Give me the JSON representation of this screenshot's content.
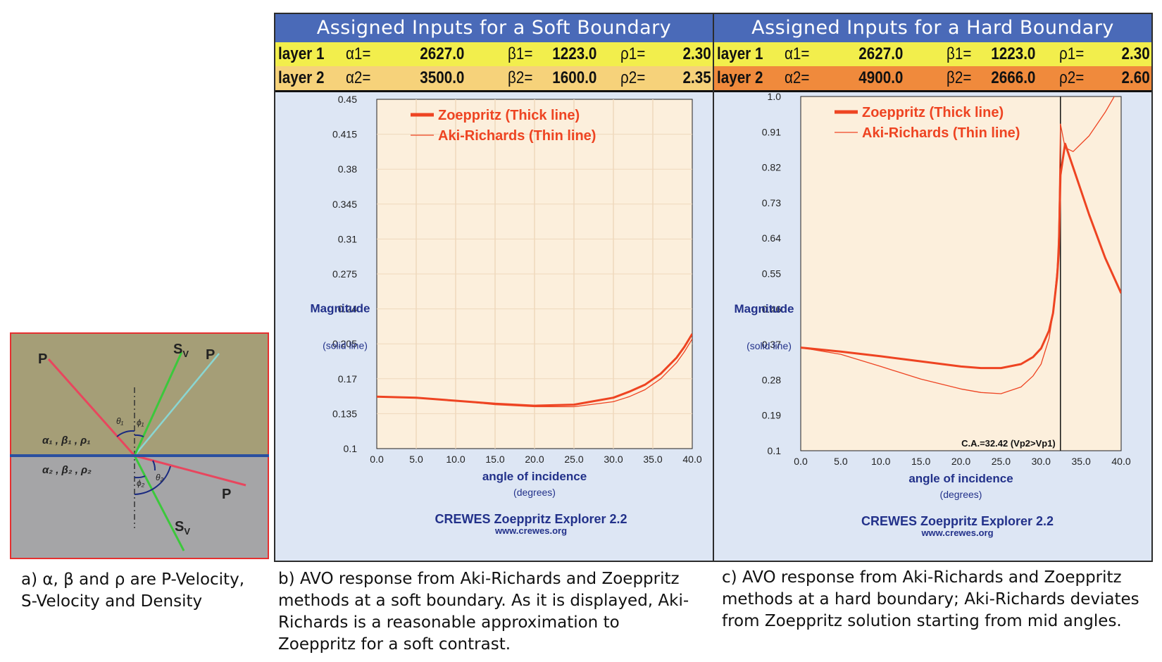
{
  "diagram": {
    "labels": {
      "p_incident": "P",
      "sv_reflected": "S",
      "sv_reflected_sub": "V",
      "p_reflected": "P",
      "p_transmitted": "P",
      "sv_transmitted": "S",
      "sv_transmitted_sub": "V",
      "theta1": "θ₁",
      "phi1": "ϕ₁",
      "theta2": "θ₂",
      "phi2": "ϕ₂",
      "layer1_props": "α₁ , β₁ , ρ₁",
      "layer2_props": "α₂ , β₂ , ρ₂"
    },
    "colors": {
      "upper_medium": "#a59e77",
      "lower_medium": "#a5a5a7",
      "border": "#e53030",
      "interface": "#2a4fa0",
      "p_ray": "#e8465e",
      "s_ray": "#3cc83c",
      "p_reflected_ray": "#8ad6d2"
    },
    "caption_lines": [
      "a) α, β and ρ are P-Velocity,",
      "S-Velocity and Density"
    ]
  },
  "panels": [
    {
      "id": "b",
      "title": "Assigned Inputs for a Soft Boundary",
      "row2_color": "#f6d27a",
      "inputs": [
        {
          "layer": "layer 1",
          "a_label": "α1=",
          "a": "2627.0",
          "b_label": "β1=",
          "b": "1223.0",
          "r_label": "ρ1=",
          "r": "2.30"
        },
        {
          "layer": "layer 2",
          "a_label": "α2=",
          "a": "3500.0",
          "b_label": "β2=",
          "b": "1600.0",
          "r_label": "ρ2=",
          "r": "2.35"
        }
      ],
      "footer": "CREWES Zoeppritz Explorer 2.2",
      "footer_url": "www.crewes.org",
      "caption_lines": [
        "b) AVO response from Aki-Richards and Zoeppritz",
        "methods at a soft boundary. As it is displayed, Aki-",
        "Richards is a reasonable approximation to",
        "Zoeppritz for a soft contrast."
      ]
    },
    {
      "id": "c",
      "title": "Assigned Inputs for a Hard Boundary",
      "row2_color": "#f08a3c",
      "inputs": [
        {
          "layer": "layer 1",
          "a_label": "α1=",
          "a": "2627.0",
          "b_label": "β1=",
          "b": "1223.0",
          "r_label": "ρ1=",
          "r": "2.30"
        },
        {
          "layer": "layer 2",
          "a_label": "α2=",
          "a": "4900.0",
          "b_label": "β2=",
          "b": "2666.0",
          "r_label": "ρ2=",
          "r": "2.60"
        }
      ],
      "footer": "CREWES Zoeppritz Explorer 2.2",
      "footer_url": "www.crewes.org",
      "caption_lines": [
        "c) AVO response from Aki-Richards and Zoeppritz",
        "methods at a hard boundary; Aki-Richards deviates",
        "from Zoeppritz solution starting from mid angles."
      ]
    }
  ],
  "chart_data": [
    {
      "type": "line",
      "xlabel": "angle of incidence",
      "xlabel_sub": "(degrees)",
      "ylabel": "Magnitude",
      "ylabel_sub": "(solid line)",
      "xlim": [
        0,
        40
      ],
      "ylim": [
        0.1,
        0.45
      ],
      "x_ticks": [
        "0.0",
        "5.0",
        "10.0",
        "15.0",
        "20.0",
        "25.0",
        "30.0",
        "35.0",
        "40.0"
      ],
      "y_ticks": [
        "0.1",
        "0.135",
        "0.17",
        "0.205",
        "0.24",
        "0.275",
        "0.31",
        "0.345",
        "0.38",
        "0.415",
        "0.45"
      ],
      "grid": true,
      "legend_position": "top-left",
      "colors": {
        "line": "#ee4422",
        "plot_bg": "#fcefdc",
        "grid": "#efd8bc",
        "axis_text": "#22318a"
      },
      "series": [
        {
          "name": "Zoeppritz (Thick line)",
          "width": "thick",
          "x": [
            0,
            5,
            10,
            15,
            20,
            25,
            30,
            32,
            34,
            36,
            38,
            39,
            40
          ],
          "y": [
            0.152,
            0.151,
            0.148,
            0.145,
            0.143,
            0.144,
            0.151,
            0.157,
            0.164,
            0.175,
            0.191,
            0.202,
            0.215
          ]
        },
        {
          "name": "Aki-Richards (Thin line)",
          "width": "thin",
          "x": [
            0,
            5,
            10,
            15,
            20,
            25,
            30,
            32,
            34,
            36,
            38,
            39,
            40
          ],
          "y": [
            0.152,
            0.151,
            0.148,
            0.144,
            0.142,
            0.142,
            0.147,
            0.152,
            0.159,
            0.17,
            0.186,
            0.197,
            0.21
          ]
        }
      ],
      "annotation": null
    },
    {
      "type": "line",
      "xlabel": "angle of incidence",
      "xlabel_sub": "(degrees)",
      "ylabel": "Magnitude",
      "ylabel_sub": "(solid line)",
      "xlim": [
        0,
        40
      ],
      "ylim": [
        0.1,
        1.0
      ],
      "x_ticks": [
        "0.0",
        "5.0",
        "10.0",
        "15.0",
        "20.0",
        "25.0",
        "30.0",
        "35.0",
        "40.0"
      ],
      "y_ticks": [
        "0.1",
        "0.19",
        "0.28",
        "0.37",
        "0.46",
        "0.55",
        "0.64",
        "0.73",
        "0.82",
        "0.91",
        "1.0"
      ],
      "grid": false,
      "legend_position": "top-left",
      "colors": {
        "line": "#ee4422",
        "plot_bg": "#fcefdc",
        "grid": "#efd8bc",
        "axis_text": "#22318a"
      },
      "series": [
        {
          "name": "Zoeppritz (Thick line)",
          "width": "thick",
          "x": [
            0,
            5,
            10,
            15,
            20,
            22.5,
            25,
            27.5,
            29,
            30,
            31,
            31.5,
            32,
            32.2,
            32.42,
            33,
            34,
            36,
            38,
            40
          ],
          "y": [
            0.362,
            0.352,
            0.34,
            0.327,
            0.314,
            0.31,
            0.31,
            0.32,
            0.338,
            0.36,
            0.405,
            0.45,
            0.54,
            0.6,
            0.8,
            0.88,
            0.82,
            0.7,
            0.59,
            0.5
          ]
        },
        {
          "name": "Aki-Richards (Thin line)",
          "width": "thin",
          "x": [
            0,
            5,
            10,
            15,
            20,
            22.5,
            25,
            27.5,
            29,
            30,
            31,
            31.5,
            32,
            32.2,
            32.42,
            33,
            34,
            36,
            38,
            40
          ],
          "y": [
            0.362,
            0.345,
            0.314,
            0.282,
            0.257,
            0.248,
            0.245,
            0.262,
            0.29,
            0.32,
            0.385,
            0.45,
            0.56,
            0.65,
            0.93,
            0.87,
            0.86,
            0.9,
            0.96,
            1.03
          ]
        }
      ],
      "annotation": {
        "x": 32.42,
        "text": "C.A.=32.42 (Vp2>Vp1)"
      }
    }
  ]
}
